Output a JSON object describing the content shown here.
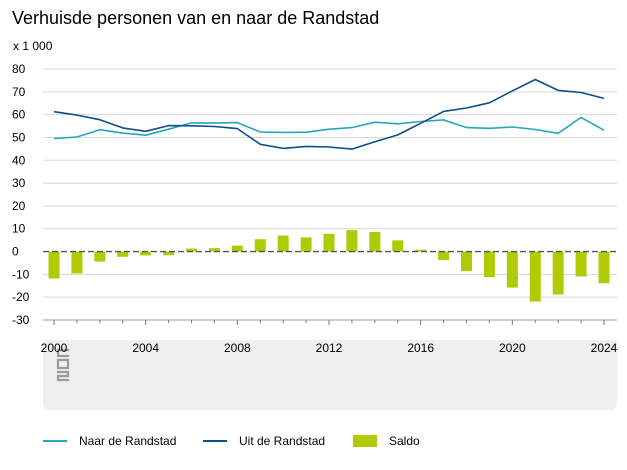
{
  "title": "Verhuisde personen van en naar de Randstad",
  "unit_label": "x 1 000",
  "colors": {
    "naar": "#27a5be",
    "uit": "#0f4d8b",
    "saldo": "#afcb05",
    "grid": "#d8d8d8",
    "zero": "#555555",
    "panel": "#efefef"
  },
  "logo": {
    "name": "cbs-logo-icon"
  },
  "legend": [
    {
      "label": "Naar de Randstad",
      "color": "#27a5be",
      "kind": "line"
    },
    {
      "label": "Uit de Randstad",
      "color": "#0f4d8b",
      "kind": "line"
    },
    {
      "label": "Saldo",
      "color": "#afcb05",
      "kind": "bar"
    }
  ],
  "chart_data": {
    "type": "line+bar",
    "title": "Verhuisde personen van en naar de Randstad",
    "ylabel": "x 1 000",
    "xlabel": "",
    "ylim": [
      -30,
      80
    ],
    "yticks": [
      80,
      70,
      60,
      50,
      40,
      30,
      20,
      10,
      0,
      -10,
      -20,
      -30
    ],
    "xticks": [
      2000,
      2004,
      2008,
      2012,
      2016,
      2020,
      2024
    ],
    "grid": true,
    "x": [
      2000,
      2001,
      2002,
      2003,
      2004,
      2005,
      2006,
      2007,
      2008,
      2009,
      2010,
      2011,
      2012,
      2013,
      2014,
      2015,
      2016,
      2017,
      2018,
      2019,
      2020,
      2021,
      2022,
      2023,
      2024
    ],
    "series": [
      {
        "name": "Naar de Randstad",
        "type": "line",
        "values": [
          49.5,
          50.2,
          53.4,
          51.9,
          51.0,
          53.6,
          56.4,
          56.3,
          56.5,
          52.4,
          52.2,
          52.3,
          53.6,
          54.3,
          56.7,
          56.0,
          57.0,
          57.7,
          54.3,
          54.0,
          54.6,
          53.5,
          51.8,
          58.8,
          53.2
        ]
      },
      {
        "name": "Uit de Randstad",
        "type": "line",
        "values": [
          61.3,
          59.8,
          57.8,
          54.2,
          52.7,
          55.2,
          55.1,
          54.8,
          53.9,
          47.0,
          45.2,
          46.1,
          45.8,
          44.9,
          48.1,
          51.1,
          56.2,
          61.4,
          62.9,
          65.2,
          70.4,
          75.4,
          70.6,
          69.7,
          67.1
        ]
      },
      {
        "name": "Saldo",
        "type": "bar",
        "values": [
          -11.8,
          -9.6,
          -4.4,
          -2.3,
          -1.7,
          -1.6,
          1.3,
          1.5,
          2.6,
          5.4,
          7.0,
          6.2,
          7.8,
          9.4,
          8.6,
          4.9,
          0.8,
          -3.7,
          -8.6,
          -11.2,
          -15.8,
          -21.9,
          -18.8,
          -10.9,
          -13.9
        ]
      }
    ]
  }
}
